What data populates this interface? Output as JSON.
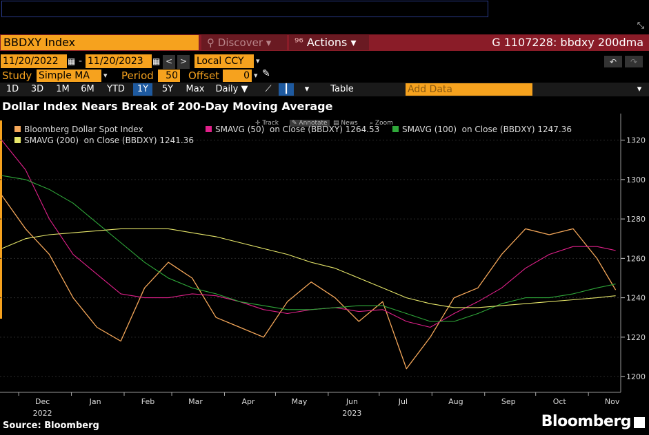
{
  "header": {
    "ticker": "BBDXY Index",
    "discover_label": "Discover",
    "actions_label": "Actions",
    "graph_title": "G 1107228: bbdxy 200dma"
  },
  "controls": {
    "start_date": "11/20/2022",
    "end_date": "11/20/2023",
    "currency": "Local CCY",
    "study_label": "Study",
    "study_value": "Simple MA",
    "period_label": "Period",
    "period_value": "50",
    "offset_label": "Offset",
    "offset_value": "0",
    "ranges": [
      "1D",
      "3D",
      "1M",
      "6M",
      "YTD",
      "1Y",
      "5Y",
      "Max"
    ],
    "active_range": "1Y",
    "frequency": "Daily",
    "table_label": "Table",
    "add_data_placeholder": "Add Data"
  },
  "chart_toolbar": {
    "track": "Track",
    "annotate": "Annotate",
    "news": "News",
    "zoom": "Zoom"
  },
  "colors": {
    "price": "#f6a85a",
    "sma50": "#e0208a",
    "sma100": "#2fa83a",
    "sma200": "#e8e86a",
    "accent": "#f6a21e",
    "header_bg": "#8a1c28"
  },
  "footer": {
    "source": "Source: Bloomberg",
    "logo": "Bloomberg"
  },
  "chart_data": {
    "type": "line",
    "title": "Dollar Index Nears Break of 200-Day Moving Average",
    "legend": [
      {
        "name": "Bloomberg Dollar Spot Index",
        "color": "#f6a85a"
      },
      {
        "name": "SMAVG (50)  on Close (BBDXY) 1264.53",
        "color": "#e0208a"
      },
      {
        "name": "SMAVG (100)  on Close (BBDXY) 1247.36",
        "color": "#2fa83a"
      },
      {
        "name": "SMAVG (200)  on Close (BBDXY) 1241.36",
        "color": "#e8e86a"
      }
    ],
    "x_ticks": [
      "Dec",
      "Jan",
      "Feb",
      "Mar",
      "Apr",
      "May",
      "Jun",
      "Jul",
      "Aug",
      "Sep",
      "Oct",
      "Nov"
    ],
    "x_year_labels": [
      {
        "label": "2022",
        "month": "Dec"
      },
      {
        "label": "2023",
        "month": "Jun"
      }
    ],
    "ylim": [
      1192,
      1330
    ],
    "y_ticks": [
      1200,
      1220,
      1240,
      1260,
      1280,
      1300,
      1320
    ],
    "y_axis_side": "right",
    "x": [
      "2022-11-21",
      "2022-12-05",
      "2022-12-19",
      "2023-01-02",
      "2023-01-16",
      "2023-01-30",
      "2023-02-13",
      "2023-02-27",
      "2023-03-13",
      "2023-03-27",
      "2023-04-10",
      "2023-04-24",
      "2023-05-08",
      "2023-05-22",
      "2023-06-05",
      "2023-06-19",
      "2023-07-03",
      "2023-07-17",
      "2023-07-31",
      "2023-08-14",
      "2023-08-28",
      "2023-09-11",
      "2023-09-25",
      "2023-10-09",
      "2023-10-23",
      "2023-11-06",
      "2023-11-17"
    ],
    "series": [
      {
        "name": "Bloomberg Dollar Spot Index",
        "values": [
          1292,
          1275,
          1262,
          1240,
          1225,
          1218,
          1245,
          1258,
          1250,
          1230,
          1225,
          1220,
          1238,
          1248,
          1240,
          1228,
          1238,
          1204,
          1220,
          1240,
          1245,
          1262,
          1275,
          1272,
          1275,
          1260,
          1244
        ]
      },
      {
        "name": "SMAVG (50)",
        "values": [
          1320,
          1305,
          1280,
          1262,
          1252,
          1242,
          1240,
          1240,
          1242,
          1241,
          1238,
          1234,
          1232,
          1234,
          1235,
          1233,
          1234,
          1228,
          1225,
          1232,
          1238,
          1245,
          1255,
          1262,
          1266,
          1266,
          1264
        ]
      },
      {
        "name": "SMAVG (100)",
        "values": [
          1302,
          1300,
          1295,
          1288,
          1278,
          1268,
          1258,
          1250,
          1245,
          1242,
          1238,
          1236,
          1234,
          1234,
          1235,
          1236,
          1236,
          1232,
          1228,
          1228,
          1232,
          1237,
          1240,
          1240,
          1242,
          1245,
          1247
        ]
      },
      {
        "name": "SMAVG (200)",
        "values": [
          1265,
          1270,
          1272,
          1273,
          1274,
          1275,
          1275,
          1275,
          1273,
          1271,
          1268,
          1265,
          1262,
          1258,
          1255,
          1250,
          1245,
          1240,
          1237,
          1235,
          1235,
          1236,
          1237,
          1238,
          1239,
          1240,
          1241
        ]
      }
    ]
  }
}
